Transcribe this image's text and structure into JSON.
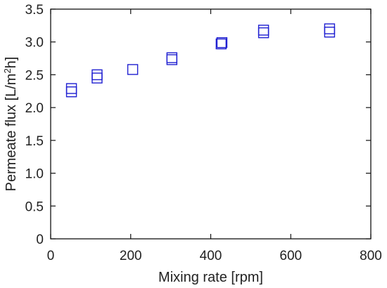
{
  "chart_data": {
    "type": "scatter",
    "xlabel": "Mixing rate [rpm]",
    "ylabel_parts": [
      "Permeate flux [L/m",
      "2",
      "h]"
    ],
    "xlim": [
      0,
      800
    ],
    "ylim": [
      0,
      3.5
    ],
    "xticks": [
      0,
      200,
      400,
      600,
      800
    ],
    "yticks": [
      0,
      0.5,
      1.0,
      1.5,
      2.0,
      2.5,
      3.0,
      3.5
    ],
    "xtick_labels": [
      "0",
      "200",
      "400",
      "600",
      "800"
    ],
    "ytick_labels": [
      "0",
      "0.5",
      "1.0",
      "1.5",
      "2.0",
      "2.5",
      "3.0",
      "3.5"
    ],
    "grid": false,
    "marker": "open-square",
    "series": [
      {
        "color": "#1f1fd1",
        "points": [
          {
            "x": 52,
            "y": 2.24
          },
          {
            "x": 52,
            "y": 2.29
          },
          {
            "x": 116,
            "y": 2.45
          },
          {
            "x": 116,
            "y": 2.5
          },
          {
            "x": 205,
            "y": 2.58
          },
          {
            "x": 303,
            "y": 2.73
          },
          {
            "x": 303,
            "y": 2.76
          },
          {
            "x": 426,
            "y": 2.97
          },
          {
            "x": 428,
            "y": 2.99
          },
          {
            "x": 532,
            "y": 3.14
          },
          {
            "x": 532,
            "y": 3.18
          },
          {
            "x": 697,
            "y": 3.15
          },
          {
            "x": 697,
            "y": 3.2
          }
        ]
      }
    ]
  }
}
